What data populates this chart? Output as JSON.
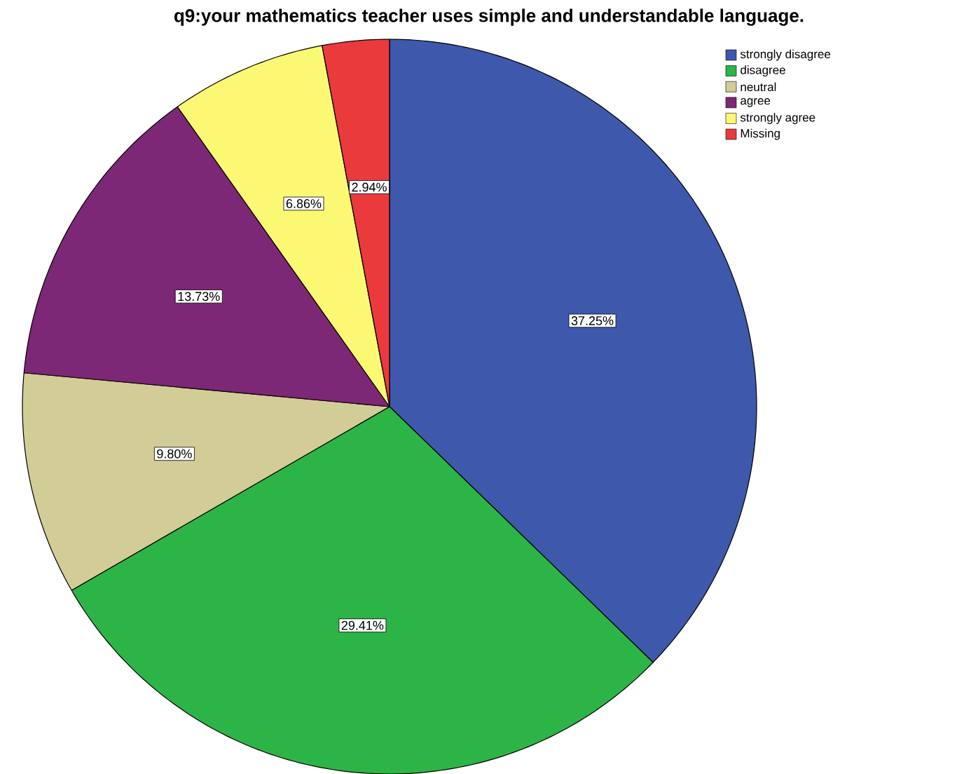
{
  "chart_data": {
    "type": "pie",
    "title": "q9:your mathematics teacher uses simple and understandable language.",
    "categories": [
      "strongly disagree",
      "disagree",
      "neutral",
      "agree",
      "strongly agree",
      "Missing"
    ],
    "values": [
      37.25,
      29.41,
      9.8,
      13.73,
      6.86,
      2.94
    ],
    "value_labels": [
      "37.25%",
      "29.41%",
      "9.80%",
      "13.73%",
      "6.86%",
      "2.94%"
    ],
    "colors": [
      "#3e58ac",
      "#2db446",
      "#d2cc96",
      "#7d2777",
      "#fbf873",
      "#ea3a3c"
    ],
    "legend": "top right"
  }
}
